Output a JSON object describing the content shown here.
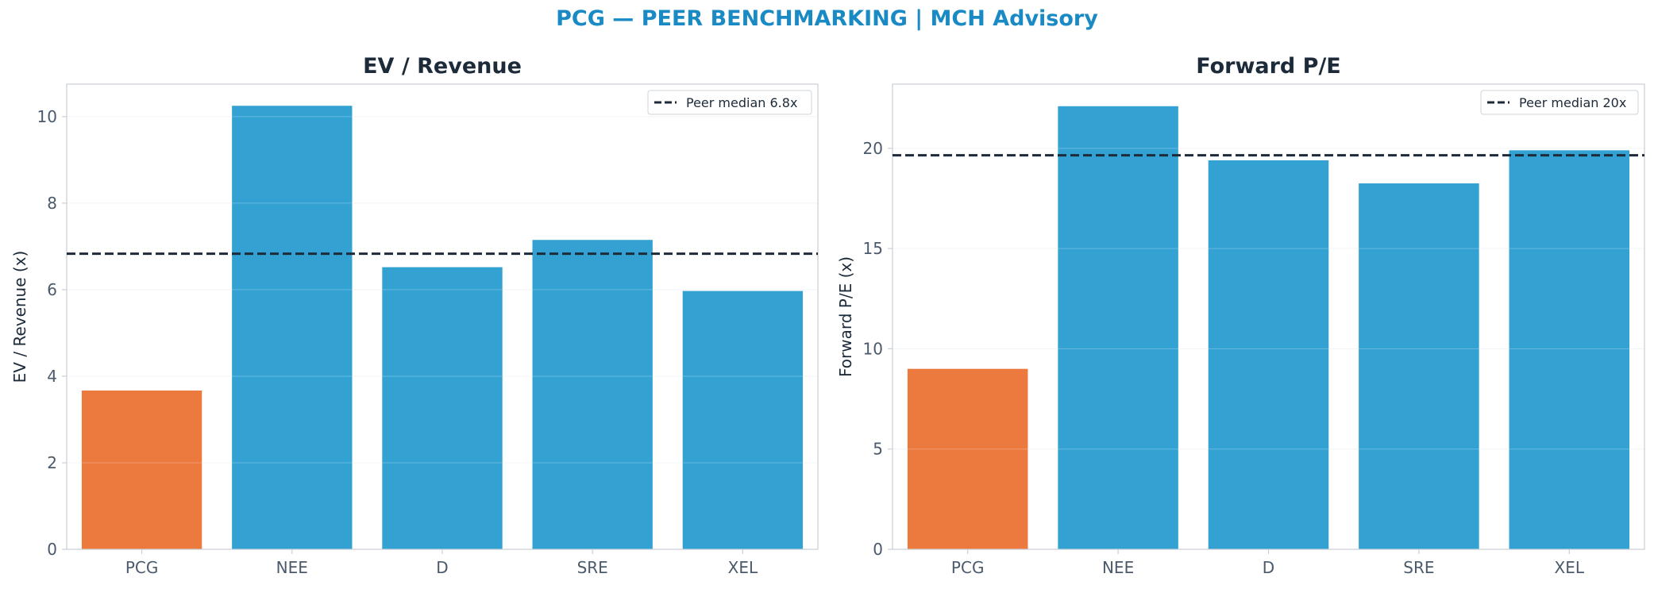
{
  "figure": {
    "suptitle": "PCG — PEER BENCHMARKING | MCH Advisory"
  },
  "colors": {
    "highlight": "#ec7a3e",
    "peer": "#33a2d3",
    "median_line": "#1c2a3a",
    "axis": "#c9cfd6",
    "grid": "#eef1f4"
  },
  "chart_data": [
    {
      "type": "bar",
      "title": "EV / Revenue",
      "ylabel": "EV / Revenue (x)",
      "xlabel": "",
      "categories": [
        "PCG",
        "NEE",
        "D",
        "SRE",
        "XEL"
      ],
      "values": [
        3.67,
        10.25,
        6.52,
        7.15,
        5.97
      ],
      "highlight": "PCG",
      "ylim": [
        0,
        10.75
      ],
      "yticks": [
        0,
        2,
        4,
        6,
        8,
        10
      ],
      "ytick_labels": [
        "0",
        "2",
        "4",
        "6",
        "8",
        "10"
      ],
      "grid": true,
      "legend_position": "top-right",
      "reference_line": {
        "value": 6.83,
        "label": "Peer median 6.8x",
        "style": "dashed"
      }
    },
    {
      "type": "bar",
      "title": "Forward P/E",
      "ylabel": "Forward P/E (x)",
      "xlabel": "",
      "categories": [
        "PCG",
        "NEE",
        "D",
        "SRE",
        "XEL"
      ],
      "values": [
        9.0,
        22.1,
        19.4,
        18.25,
        19.9
      ],
      "highlight": "PCG",
      "ylim": [
        0,
        23.2
      ],
      "yticks": [
        0,
        5,
        10,
        15,
        20
      ],
      "ytick_labels": [
        "0",
        "5",
        "10",
        "15",
        "20"
      ],
      "grid": true,
      "legend_position": "top-right",
      "reference_line": {
        "value": 19.65,
        "label": "Peer median 20x",
        "style": "dashed"
      }
    }
  ]
}
